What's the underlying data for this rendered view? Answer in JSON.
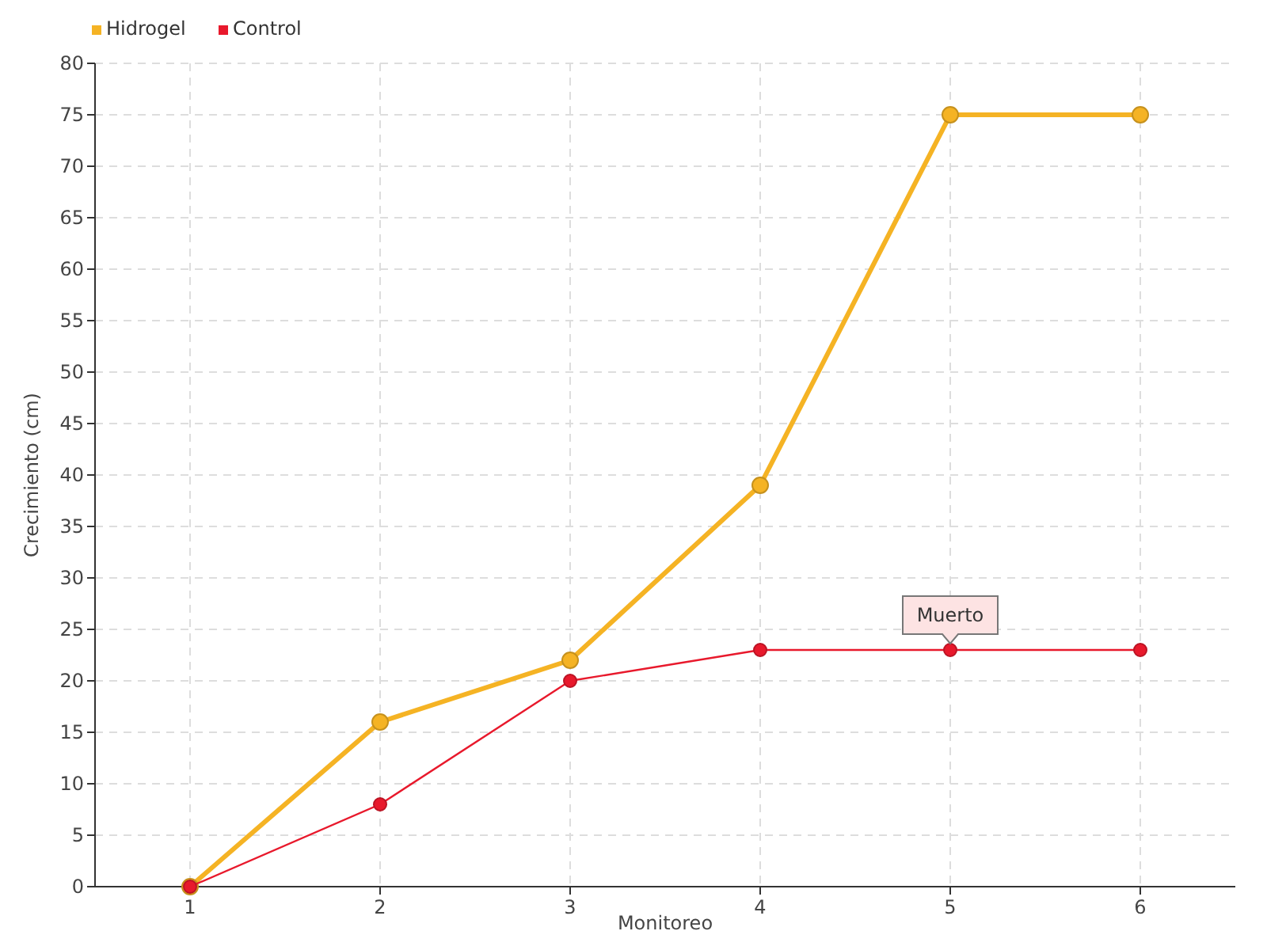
{
  "chart_data": {
    "type": "line",
    "xlabel": "Monitoreo",
    "ylabel": "Crecimiento (cm)",
    "x": [
      1,
      2,
      3,
      4,
      5,
      6
    ],
    "series": [
      {
        "name": "Hidrogel",
        "color": "#f5b324",
        "values": [
          0,
          16,
          22,
          39,
          75,
          75
        ]
      },
      {
        "name": "Control",
        "color": "#e8192c",
        "values": [
          0,
          8,
          20,
          23,
          23,
          23
        ]
      }
    ],
    "xlim": [
      0.5,
      6.5
    ],
    "xticks": [
      1,
      2,
      3,
      4,
      5,
      6
    ],
    "ylim": [
      0,
      80
    ],
    "yticks": [
      0,
      5,
      10,
      15,
      20,
      25,
      30,
      35,
      40,
      45,
      50,
      55,
      60,
      65,
      70,
      75,
      80
    ],
    "grid": true,
    "legend": "top left",
    "marker": "circle",
    "line_style": "solid",
    "annotations": [
      {
        "text": "Muerto",
        "x": 5,
        "y": 23
      }
    ]
  }
}
